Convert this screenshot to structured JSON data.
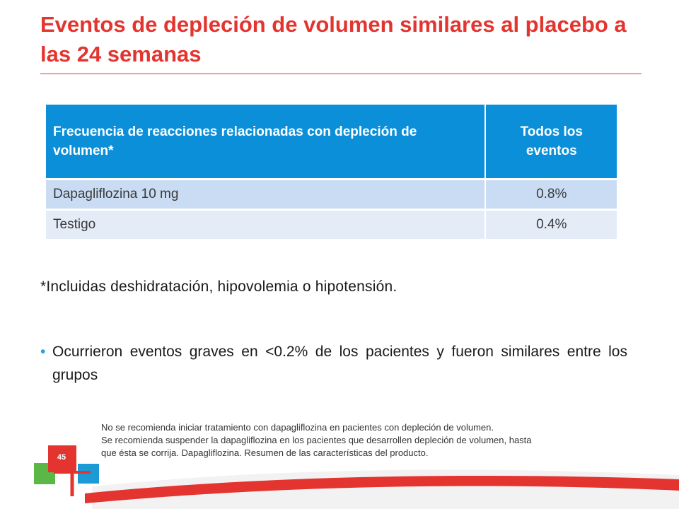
{
  "header": {
    "title": "Eventos de depleción de volumen similares al placebo a las 24 semanas"
  },
  "table": {
    "headers": [
      "Frecuencia de reacciones relacionadas con depleción de volumen*",
      "Todos los eventos"
    ],
    "rows": [
      [
        "Dapagliflozina 10 mg",
        "0.8%"
      ],
      [
        "Testigo",
        "0.4%"
      ]
    ]
  },
  "footnote": "*Incluidas deshidratación, hipovolemia o hipotensión.",
  "bullets": [
    "Ocurrieron eventos graves en <0.2% de los pacientes y fueron similares entre los grupos"
  ],
  "disclaimer": [
    "No se recomienda iniciar tratamiento con dapagliflozina en pacientes con depleción de volumen.",
    "Se recomienda suspender la dapagliflozina en los pacientes que desarrollen depleción de volumen, hasta",
    "que ésta se corrija. Dapagliflozina.  Resumen de las características del producto."
  ],
  "page_number": "45"
}
